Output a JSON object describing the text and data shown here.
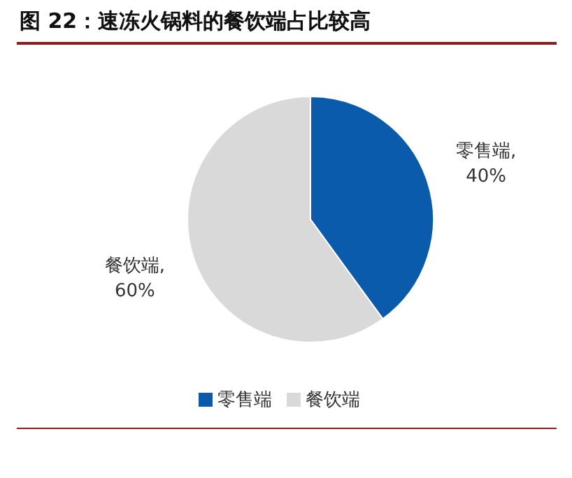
{
  "chart_data": {
    "type": "pie",
    "title": "图 22：速冻火锅料的餐饮端占比较高",
    "categories": [
      "零售端",
      "餐饮端"
    ],
    "values": [
      40,
      60
    ],
    "colors": [
      "#0b5bac",
      "#d9d9d9"
    ],
    "value_labels": [
      "零售端, 40%",
      "餐饮端, 60%"
    ],
    "legend": "bottom"
  }
}
